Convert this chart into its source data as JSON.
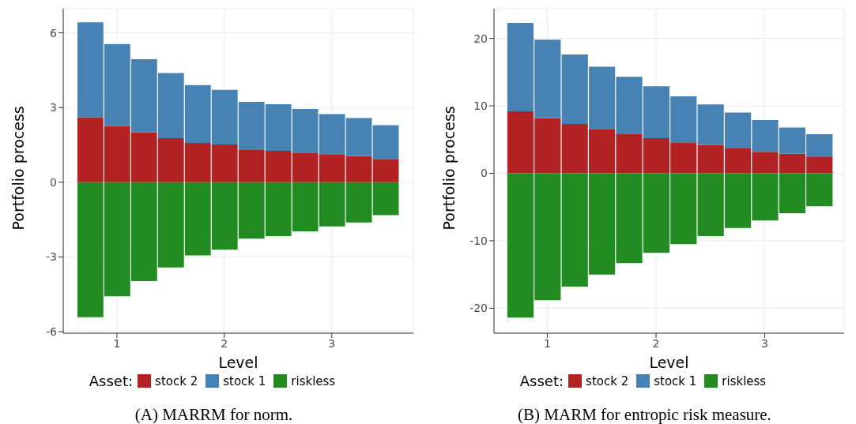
{
  "chart_data": [
    {
      "type": "bar",
      "stacked": true,
      "xlabel": "Level",
      "ylabel": "Portfolio process",
      "legend_title": "Asset:",
      "legend": "bottom",
      "grid": true,
      "x": [
        0.75,
        1,
        1.25,
        1.5,
        1.75,
        2,
        2.25,
        2.5,
        2.75,
        3,
        3.25,
        3.5
      ],
      "xlim": [
        0.5,
        3.76
      ],
      "xticks": [
        1,
        2,
        3
      ],
      "ylim": [
        -6.06,
        6.97
      ],
      "yticks": [
        -6,
        -3,
        0,
        3,
        6
      ],
      "annotations": [
        "(A) MARRM for norm."
      ],
      "series": [
        {
          "name": "stock 2",
          "color": "#b22222",
          "values": [
            2.61,
            2.26,
            2.0,
            1.77,
            1.58,
            1.52,
            1.32,
            1.26,
            1.19,
            1.13,
            1.06,
            0.94
          ]
        },
        {
          "name": "stock 1",
          "color": "#4682b4",
          "values": [
            3.81,
            3.29,
            2.94,
            2.62,
            2.32,
            2.19,
            1.91,
            1.87,
            1.75,
            1.61,
            1.52,
            1.35
          ]
        },
        {
          "name": "riskless",
          "color": "#228b22",
          "values": [
            -5.42,
            -4.58,
            -3.97,
            -3.42,
            -2.94,
            -2.71,
            -2.26,
            -2.16,
            -1.97,
            -1.77,
            -1.61,
            -1.32
          ]
        }
      ]
    },
    {
      "type": "bar",
      "stacked": true,
      "xlabel": "Level",
      "ylabel": "Portfolio process",
      "legend_title": "Asset:",
      "legend": "bottom",
      "grid": true,
      "x": [
        0.75,
        1,
        1.25,
        1.5,
        1.75,
        2,
        2.25,
        2.5,
        2.75,
        3,
        3.25,
        3.5
      ],
      "xlim": [
        0.51,
        3.73
      ],
      "xticks": [
        1,
        2,
        3
      ],
      "ylim": [
        -23.7,
        24.4
      ],
      "yticks": [
        -20,
        -10,
        0,
        10,
        20
      ],
      "annotations": [
        "(B) MARM for entropic risk measure."
      ],
      "series": [
        {
          "name": "stock 2",
          "color": "#b22222",
          "values": [
            9.2,
            8.2,
            7.3,
            6.5,
            5.8,
            5.2,
            4.6,
            4.2,
            3.7,
            3.2,
            2.9,
            2.5
          ]
        },
        {
          "name": "stock 1",
          "color": "#4682b4",
          "values": [
            13.1,
            11.6,
            10.3,
            9.3,
            8.5,
            7.7,
            6.8,
            6.0,
            5.3,
            4.7,
            3.9,
            3.3
          ]
        },
        {
          "name": "riskless",
          "color": "#228b22",
          "values": [
            -21.4,
            -18.8,
            -16.8,
            -15.0,
            -13.3,
            -11.8,
            -10.5,
            -9.3,
            -8.1,
            -7.0,
            -5.9,
            -4.9
          ]
        }
      ]
    }
  ]
}
